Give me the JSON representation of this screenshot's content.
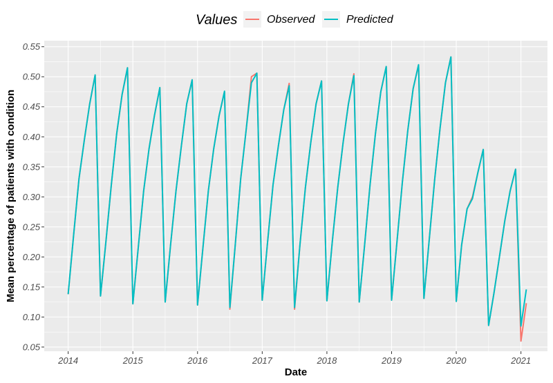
{
  "chart_data": {
    "type": "line",
    "xlabel": "Date",
    "ylabel": "Mean percentage of patients with condition",
    "x_ticks": [
      "2014",
      "2015",
      "2016",
      "2017",
      "2018",
      "2019",
      "2020",
      "2021"
    ],
    "y_ticks": [
      "0.05",
      "0.10",
      "0.15",
      "0.20",
      "0.25",
      "0.30",
      "0.35",
      "0.40",
      "0.45",
      "0.50",
      "0.55"
    ],
    "xlim": [
      2013.63,
      2021.41
    ],
    "ylim": [
      0.043,
      0.56
    ],
    "grid": true,
    "legend": {
      "title": "Values",
      "position": "top"
    },
    "colors": {
      "Observed": "#F8766D",
      "Predicted": "#00BFC4",
      "panel": "#EBEBEB",
      "grid": "#FFFFFF"
    },
    "x": [
      2014.0,
      2014.083,
      2014.167,
      2014.25,
      2014.333,
      2014.417,
      2014.5,
      2014.583,
      2014.667,
      2014.75,
      2014.833,
      2014.917,
      2015.0,
      2015.083,
      2015.167,
      2015.25,
      2015.333,
      2015.417,
      2015.5,
      2015.583,
      2015.667,
      2015.75,
      2015.833,
      2015.917,
      2016.0,
      2016.083,
      2016.167,
      2016.25,
      2016.333,
      2016.417,
      2016.5,
      2016.583,
      2016.667,
      2016.75,
      2016.833,
      2016.917,
      2017.0,
      2017.083,
      2017.167,
      2017.25,
      2017.333,
      2017.417,
      2017.5,
      2017.583,
      2017.667,
      2017.75,
      2017.833,
      2017.917,
      2018.0,
      2018.083,
      2018.167,
      2018.25,
      2018.333,
      2018.417,
      2018.5,
      2018.583,
      2018.667,
      2018.75,
      2018.833,
      2018.917,
      2019.0,
      2019.083,
      2019.167,
      2019.25,
      2019.333,
      2019.417,
      2019.5,
      2019.583,
      2019.667,
      2019.75,
      2019.833,
      2019.917,
      2020.0,
      2020.083,
      2020.167,
      2020.25,
      2020.333,
      2020.417,
      2020.5,
      2020.583,
      2020.667,
      2020.75,
      2020.833,
      2020.917,
      2021.0,
      2021.083
    ],
    "series": [
      {
        "name": "Observed",
        "values": [
          0.138,
          0.235,
          0.33,
          0.395,
          0.455,
          0.503,
          0.135,
          0.225,
          0.32,
          0.405,
          0.47,
          0.515,
          0.122,
          0.215,
          0.31,
          0.38,
          0.435,
          0.482,
          0.125,
          0.22,
          0.31,
          0.385,
          0.455,
          0.495,
          0.12,
          0.215,
          0.31,
          0.38,
          0.435,
          0.475,
          0.113,
          0.22,
          0.33,
          0.41,
          0.5,
          0.506,
          0.128,
          0.225,
          0.32,
          0.385,
          0.445,
          0.489,
          0.113,
          0.22,
          0.315,
          0.39,
          0.455,
          0.493,
          0.127,
          0.225,
          0.315,
          0.39,
          0.455,
          0.505,
          0.125,
          0.22,
          0.32,
          0.405,
          0.475,
          0.517,
          0.128,
          0.225,
          0.325,
          0.41,
          0.48,
          0.52,
          0.131,
          0.23,
          0.33,
          0.415,
          0.49,
          0.533,
          0.126,
          0.22,
          0.28,
          0.3,
          0.34,
          0.379,
          0.086,
          0.14,
          0.2,
          0.26,
          0.31,
          0.346,
          0.06,
          0.123
        ]
      },
      {
        "name": "Predicted",
        "values": [
          0.138,
          0.235,
          0.33,
          0.395,
          0.455,
          0.503,
          0.135,
          0.225,
          0.32,
          0.405,
          0.47,
          0.515,
          0.122,
          0.215,
          0.31,
          0.38,
          0.435,
          0.482,
          0.125,
          0.22,
          0.31,
          0.385,
          0.455,
          0.495,
          0.12,
          0.215,
          0.31,
          0.38,
          0.435,
          0.476,
          0.116,
          0.22,
          0.33,
          0.41,
          0.49,
          0.506,
          0.128,
          0.225,
          0.32,
          0.385,
          0.445,
          0.485,
          0.116,
          0.22,
          0.315,
          0.39,
          0.455,
          0.493,
          0.127,
          0.225,
          0.315,
          0.39,
          0.455,
          0.502,
          0.125,
          0.22,
          0.32,
          0.405,
          0.475,
          0.517,
          0.128,
          0.225,
          0.325,
          0.41,
          0.48,
          0.52,
          0.131,
          0.23,
          0.33,
          0.415,
          0.49,
          0.533,
          0.126,
          0.22,
          0.28,
          0.297,
          0.34,
          0.379,
          0.086,
          0.14,
          0.2,
          0.26,
          0.31,
          0.346,
          0.085,
          0.146
        ]
      }
    ]
  }
}
